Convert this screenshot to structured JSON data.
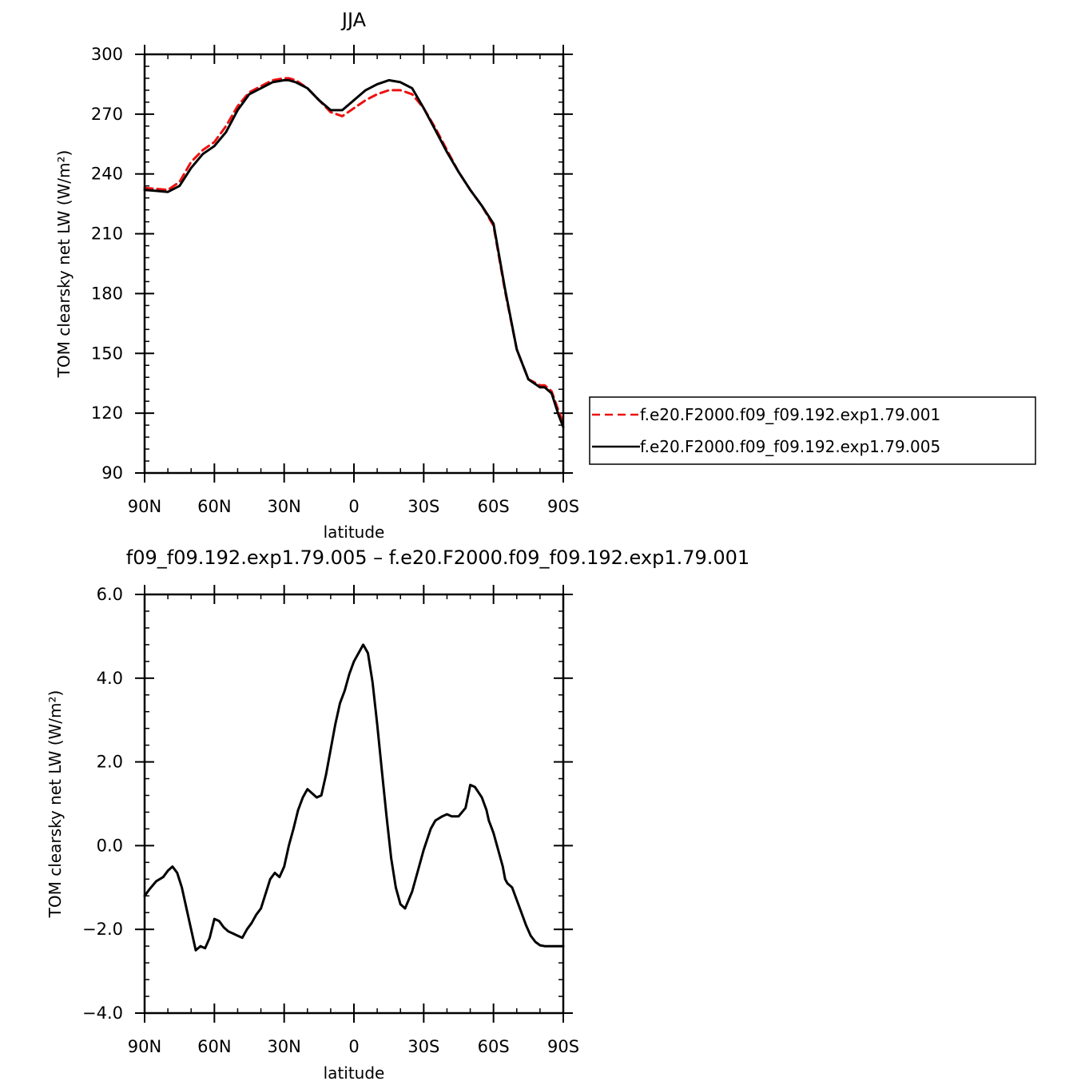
{
  "chart_data": [
    {
      "type": "line",
      "title": "JJA",
      "xlabel": "latitude",
      "ylabel": "TOM clearsky net LW (W/m²)",
      "ylim": [
        90,
        300
      ],
      "xlim": [
        90,
        -90
      ],
      "x_ticks": [
        90,
        60,
        30,
        0,
        -30,
        -60,
        -90
      ],
      "x_tick_labels": [
        "90N",
        "60N",
        "30N",
        "0",
        "30S",
        "60S",
        "90S"
      ],
      "y_ticks": [
        90,
        120,
        150,
        180,
        210,
        240,
        270,
        300
      ],
      "y_tick_labels": [
        "90",
        "120",
        "150",
        "180",
        "210",
        "240",
        "270",
        "300"
      ],
      "legend_position": "right",
      "series": [
        {
          "name": "f.e20.F2000.f09_f09.192.exp1.79.001",
          "color": "#ee1111",
          "dash": "dashed",
          "x": [
            90,
            85,
            80,
            75,
            70,
            65,
            60,
            55,
            50,
            45,
            40,
            35,
            30,
            28,
            25,
            20,
            15,
            10,
            5,
            0,
            -5,
            -10,
            -15,
            -20,
            -25,
            -30,
            -35,
            -40,
            -45,
            -50,
            -55,
            -60,
            -65,
            -70,
            -75,
            -80,
            -82,
            -85,
            -88,
            -90
          ],
          "y": [
            233,
            232.5,
            232,
            236,
            246,
            252,
            256,
            264,
            274,
            281,
            284,
            287,
            288,
            288,
            287,
            283,
            277,
            271,
            269,
            273,
            277,
            280,
            282,
            282,
            280,
            273,
            263,
            252,
            241,
            232,
            224,
            214,
            181,
            152,
            137,
            134,
            134,
            131,
            121,
            115
          ]
        },
        {
          "name": "f.e20.F2000.f09_f09.192.exp1.79.005",
          "color": "#000000",
          "dash": "solid",
          "x": [
            90,
            85,
            80,
            75,
            70,
            65,
            60,
            55,
            50,
            45,
            40,
            35,
            30,
            28,
            25,
            20,
            15,
            10,
            5,
            0,
            -5,
            -10,
            -15,
            -20,
            -25,
            -30,
            -35,
            -40,
            -45,
            -50,
            -55,
            -60,
            -65,
            -70,
            -75,
            -80,
            -82,
            -85,
            -88,
            -90
          ],
          "y": [
            232,
            231.5,
            231,
            234,
            243,
            250,
            254,
            261,
            272,
            280,
            283,
            286,
            287,
            287,
            286,
            283,
            277,
            272,
            272,
            277,
            282,
            285,
            287,
            286,
            283,
            273,
            262,
            251,
            241,
            232,
            224,
            215,
            182,
            152,
            137,
            133,
            133,
            130,
            119,
            113
          ]
        }
      ]
    },
    {
      "type": "line",
      "title": "f09_f09.192.exp1.79.005 – f.e20.F2000.f09_f09.192.exp1.79.001",
      "xlabel": "latitude",
      "ylabel": "TOM clearsky net LW (W/m²)",
      "ylim": [
        -4.0,
        6.0
      ],
      "xlim": [
        90,
        -90
      ],
      "x_ticks": [
        90,
        60,
        30,
        0,
        -30,
        -60,
        -90
      ],
      "x_tick_labels": [
        "90N",
        "60N",
        "30N",
        "0",
        "30S",
        "60S",
        "90S"
      ],
      "y_ticks": [
        -4.0,
        -2.0,
        0.0,
        2.0,
        4.0,
        6.0
      ],
      "y_tick_labels": [
        "−4.0",
        "−2.0",
        "0.0",
        "2.0",
        "4.0",
        "6.0"
      ],
      "series": [
        {
          "color": "#000000",
          "dash": "solid",
          "x": [
            90,
            88,
            85,
            82,
            80,
            78,
            76,
            74,
            72,
            70,
            68,
            66,
            64,
            62,
            60,
            58,
            56,
            54,
            52,
            50,
            48,
            46,
            44,
            42,
            40,
            38,
            36,
            34,
            32,
            30,
            28,
            26,
            24,
            22,
            20,
            18,
            16,
            14,
            12,
            10,
            8,
            6,
            4,
            2,
            0,
            -2,
            -4,
            -6,
            -8,
            -10,
            -12,
            -14,
            -16,
            -18,
            -20,
            -22,
            -25,
            -28,
            -30,
            -33,
            -35,
            -38,
            -40,
            -42,
            -45,
            -48,
            -50,
            -52,
            -55,
            -57,
            -58,
            -59,
            -60,
            -62,
            -64,
            -65,
            -66,
            -68,
            -70,
            -72,
            -74,
            -76,
            -78,
            -80,
            -82,
            -84,
            -86,
            -88,
            -90
          ],
          "y": [
            -1.2,
            -1.05,
            -0.85,
            -0.75,
            -0.6,
            -0.5,
            -0.65,
            -1.0,
            -1.5,
            -2.0,
            -2.5,
            -2.4,
            -2.45,
            -2.2,
            -1.75,
            -1.8,
            -1.95,
            -2.05,
            -2.1,
            -2.15,
            -2.2,
            -2.0,
            -1.85,
            -1.65,
            -1.5,
            -1.15,
            -0.8,
            -0.65,
            -0.75,
            -0.5,
            0.0,
            0.4,
            0.85,
            1.15,
            1.35,
            1.25,
            1.15,
            1.2,
            1.7,
            2.3,
            2.9,
            3.4,
            3.7,
            4.1,
            4.4,
            4.6,
            4.8,
            4.6,
            3.9,
            2.9,
            1.8,
            0.7,
            -0.3,
            -1.0,
            -1.4,
            -1.5,
            -1.1,
            -0.5,
            -0.1,
            0.4,
            0.6,
            0.7,
            0.75,
            0.7,
            0.7,
            0.9,
            1.45,
            1.4,
            1.15,
            0.85,
            0.6,
            0.45,
            0.3,
            -0.1,
            -0.5,
            -0.8,
            -0.9,
            -1.0,
            -1.3,
            -1.6,
            -1.9,
            -2.15,
            -2.3,
            -2.38,
            -2.4,
            -2.4,
            -2.4,
            -2.4,
            -2.4
          ]
        }
      ]
    }
  ]
}
